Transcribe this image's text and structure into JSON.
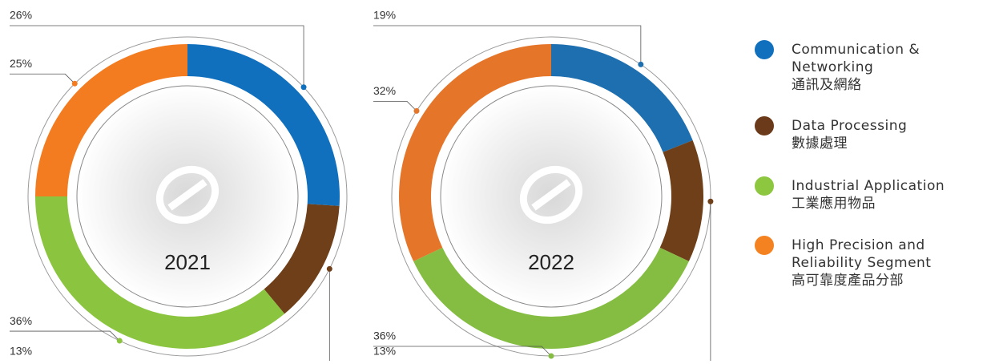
{
  "chart_data": [
    {
      "type": "donut",
      "title": "2021",
      "values": [
        26,
        13,
        36,
        25
      ],
      "value_labels": [
        "26%",
        "13%",
        "36%",
        "25%"
      ],
      "colors": [
        "#1070bd",
        "#6e3f18",
        "#8bc43f",
        "#f47c20"
      ]
    },
    {
      "type": "donut",
      "title": "2022",
      "values": [
        19,
        13,
        36,
        32
      ],
      "value_labels": [
        "19%",
        "13%",
        "36%",
        "32%"
      ],
      "colors": [
        "#1e6fb0",
        "#6e3f18",
        "#84bd41",
        "#e57529"
      ]
    }
  ],
  "legend": {
    "items": [
      {
        "lines": [
          "Communication &",
          "Networking",
          "通訊及網絡"
        ],
        "color": "#1070bd"
      },
      {
        "lines": [
          "Data Processing",
          "數據處理"
        ],
        "color": "#6b3a1a"
      },
      {
        "lines": [
          "Industrial Application",
          "工業應用物品"
        ],
        "color": "#8dc63f"
      },
      {
        "lines": [
          "High Precision and",
          "Reliability Segment",
          "高可靠度產品分部"
        ],
        "color": "#f58220"
      }
    ]
  }
}
